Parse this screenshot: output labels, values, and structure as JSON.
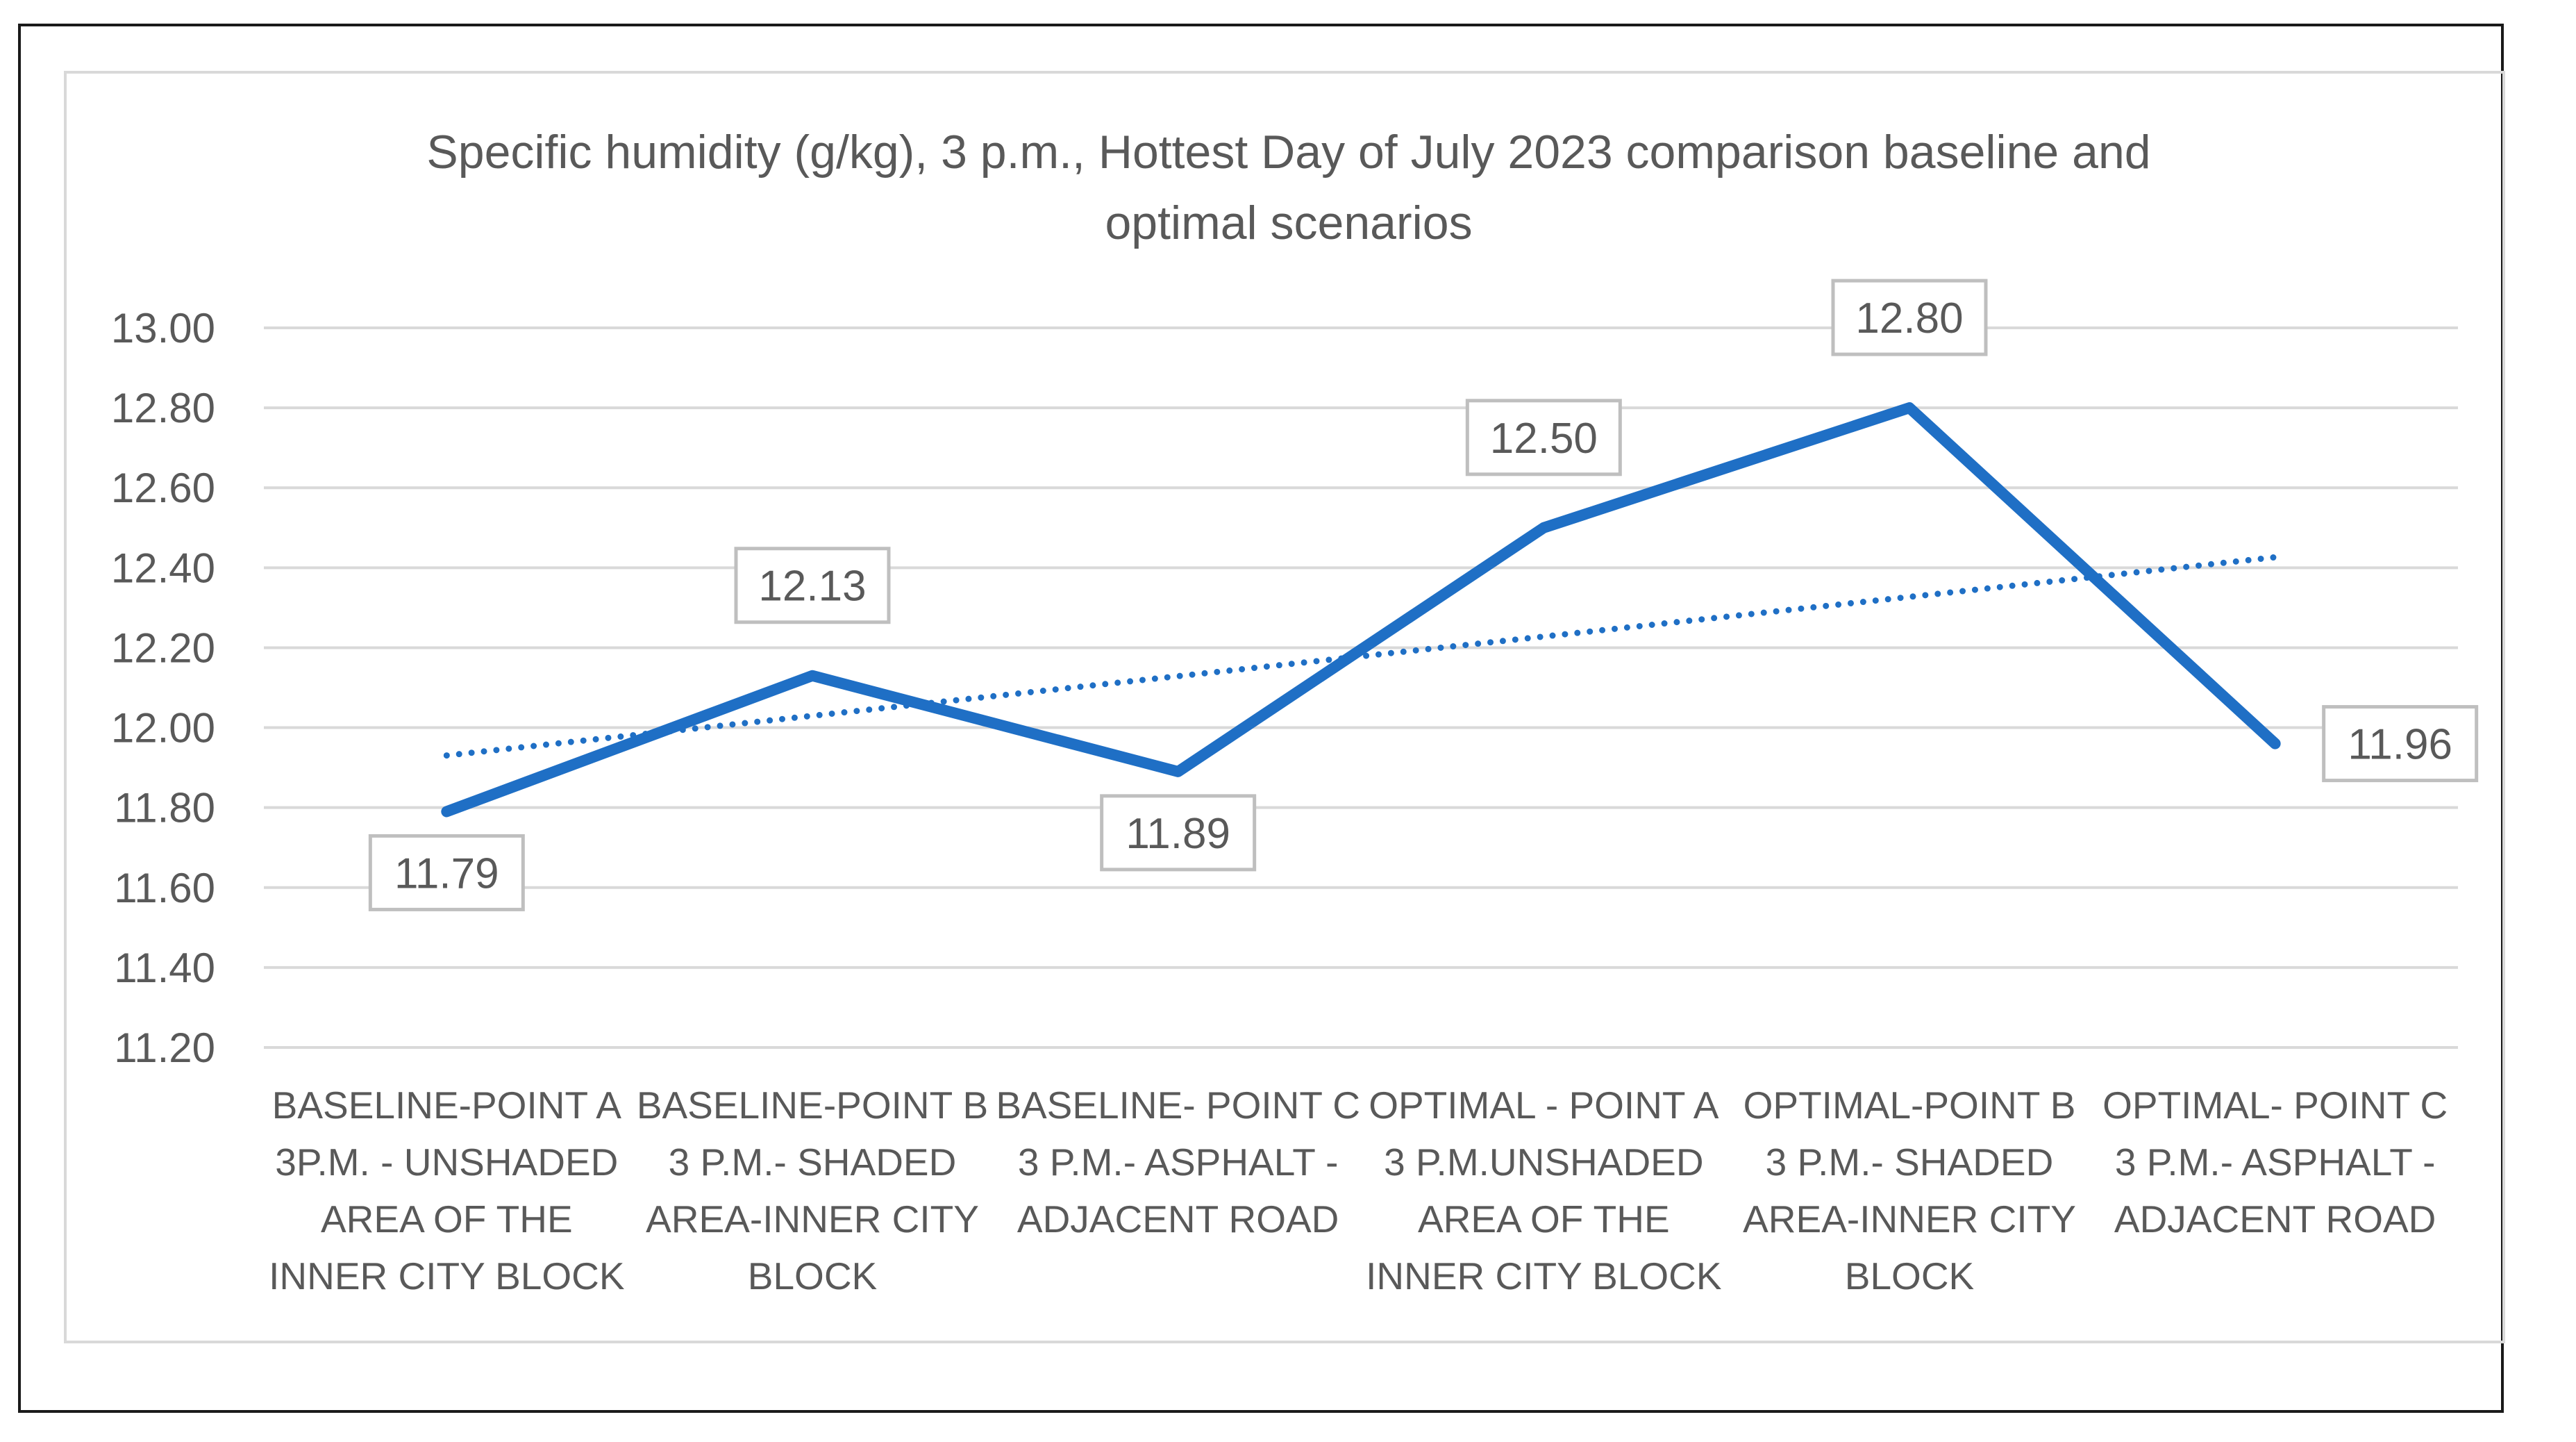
{
  "chart_data": {
    "type": "line",
    "title": "Specific humidity  (g/kg), 3 p.m., Hottest Day of July 2023 comparison baseline and optimal scenarios",
    "title_lines": [
      "Specific humidity  (g/kg), 3 p.m., Hottest Day of July 2023 comparison baseline and",
      "optimal scenarios"
    ],
    "categories": [
      [
        "BASELINE-POINT A",
        "3P.M. - UNSHADED",
        "AREA OF THE",
        "INNER CITY BLOCK"
      ],
      [
        "BASELINE-POINT B",
        "3 P.M.- SHADED",
        "AREA-INNER CITY",
        "BLOCK"
      ],
      [
        "BASELINE- POINT C",
        "3 P.M.- ASPHALT -",
        "ADJACENT ROAD"
      ],
      [
        "OPTIMAL - POINT A",
        "3 P.M.UNSHADED",
        "AREA OF THE",
        "INNER CITY BLOCK"
      ],
      [
        "OPTIMAL-POINT B",
        "3 P.M.- SHADED",
        "AREA-INNER CITY",
        "BLOCK"
      ],
      [
        "OPTIMAL- POINT C",
        "3 P.M.- ASPHALT -",
        "ADJACENT ROAD"
      ]
    ],
    "series": [
      {
        "values": [
          11.79,
          12.13,
          11.89,
          12.5,
          12.8,
          11.96
        ],
        "data_labels": [
          "11.79",
          "12.13",
          "11.89",
          "12.50",
          "12.80",
          "11.96"
        ],
        "color": "#1f6fc5"
      }
    ],
    "trendline": {
      "type": "linear",
      "style": "dotted",
      "color": "#1f6fc5"
    },
    "ylim": [
      11.2,
      13.0
    ],
    "yticks": [
      "13.00",
      "12.80",
      "12.60",
      "12.40",
      "12.20",
      "12.00",
      "11.80",
      "11.60",
      "11.40",
      "11.20"
    ],
    "ytick_values": [
      13.0,
      12.8,
      12.6,
      12.4,
      12.2,
      12.0,
      11.8,
      11.6,
      11.4,
      11.2
    ],
    "grid": true,
    "legend": "none",
    "colors": {
      "gridline": "#d9d9d9",
      "text": "#595959",
      "label_border": "#bfbfbf"
    }
  }
}
